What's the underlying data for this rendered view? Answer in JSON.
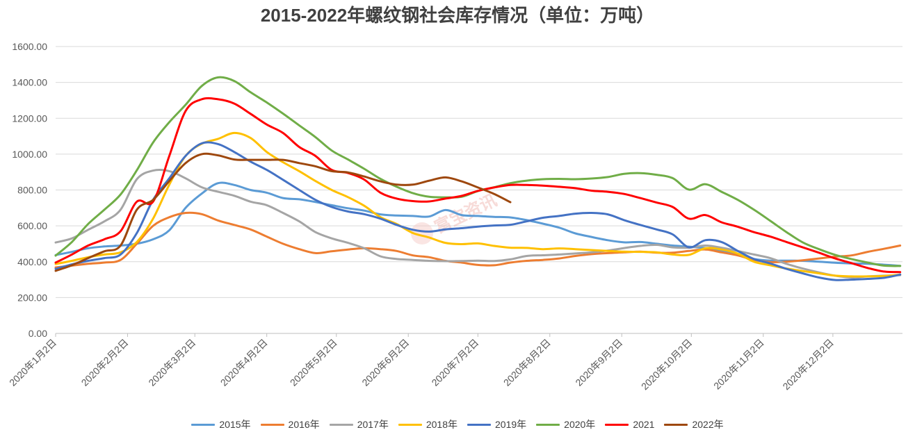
{
  "chart_data": {
    "type": "line",
    "title": "2015-2022年螺纹钢社会库存情况（单位：万吨）",
    "x_scale": "date",
    "xlim": [
      "2020-01-02",
      "2021-01-01"
    ],
    "ylim": [
      0,
      1600
    ],
    "grid": "horizontal",
    "legend": "bottom",
    "y_ticks": [
      "0.00",
      "200.00",
      "400.00",
      "600.00",
      "800.00",
      "1000.00",
      "1200.00",
      "1400.00",
      "1600.00"
    ],
    "x_ticks": [
      {
        "date": "2020-01-02",
        "label": "2020年1月2日"
      },
      {
        "date": "2020-02-02",
        "label": "2020年2月2日"
      },
      {
        "date": "2020-03-02",
        "label": "2020年3月2日"
      },
      {
        "date": "2020-04-02",
        "label": "2020年4月2日"
      },
      {
        "date": "2020-05-02",
        "label": "2020年5月2日"
      },
      {
        "date": "2020-06-02",
        "label": "2020年6月2日"
      },
      {
        "date": "2020-07-02",
        "label": "2020年7月2日"
      },
      {
        "date": "2020-08-02",
        "label": "2020年8月2日"
      },
      {
        "date": "2020-09-02",
        "label": "2020年9月2日"
      },
      {
        "date": "2020-10-02",
        "label": "2020年10月2日"
      },
      {
        "date": "2020-11-02",
        "label": "2020年11月2日"
      },
      {
        "date": "2020-12-02",
        "label": "2020年12月2日"
      }
    ],
    "x": [
      "2020-01-02",
      "2020-01-09",
      "2020-01-16",
      "2020-01-23",
      "2020-01-30",
      "2020-02-06",
      "2020-02-13",
      "2020-02-20",
      "2020-02-27",
      "2020-03-05",
      "2020-03-12",
      "2020-03-19",
      "2020-03-26",
      "2020-04-02",
      "2020-04-09",
      "2020-04-16",
      "2020-04-23",
      "2020-04-30",
      "2020-05-07",
      "2020-05-14",
      "2020-05-21",
      "2020-05-28",
      "2020-06-04",
      "2020-06-11",
      "2020-06-18",
      "2020-06-25",
      "2020-07-02",
      "2020-07-09",
      "2020-07-16",
      "2020-07-23",
      "2020-07-30",
      "2020-08-06",
      "2020-08-13",
      "2020-08-20",
      "2020-08-27",
      "2020-09-03",
      "2020-09-10",
      "2020-09-17",
      "2020-09-24",
      "2020-10-01",
      "2020-10-08",
      "2020-10-15",
      "2020-10-22",
      "2020-10-29",
      "2020-11-05",
      "2020-11-12",
      "2020-11-19",
      "2020-11-26",
      "2020-12-03",
      "2020-12-10",
      "2020-12-17",
      "2020-12-24",
      "2020-12-31"
    ],
    "series": [
      {
        "name": "2015年",
        "color": "#5B9BD5",
        "values": [
          437,
          455,
          475,
          485,
          490,
          500,
          525,
          575,
          700,
          780,
          838,
          828,
          800,
          785,
          755,
          748,
          733,
          715,
          698,
          685,
          664,
          658,
          655,
          652,
          688,
          660,
          655,
          650,
          647,
          632,
          612,
          590,
          558,
          538,
          520,
          508,
          510,
          500,
          490,
          484,
          476,
          462,
          440,
          415,
          406,
          406,
          405,
          400,
          394,
          390,
          388,
          383,
          377
        ]
      },
      {
        "name": "2016年",
        "color": "#ED7D31",
        "values": [
          368,
          378,
          388,
          395,
          410,
          500,
          600,
          648,
          672,
          665,
          630,
          605,
          580,
          540,
          500,
          470,
          448,
          458,
          468,
          475,
          470,
          460,
          435,
          425,
          405,
          395,
          382,
          380,
          395,
          405,
          410,
          418,
          432,
          442,
          448,
          452,
          456,
          450,
          450,
          460,
          468,
          452,
          435,
          410,
          398,
          400,
          408,
          418,
          428,
          435,
          455,
          472,
          490
        ]
      },
      {
        "name": "2017年",
        "color": "#A5A5A5",
        "values": [
          507,
          530,
          578,
          625,
          690,
          860,
          908,
          905,
          865,
          815,
          790,
          768,
          735,
          715,
          672,
          625,
          565,
          530,
          505,
          475,
          430,
          415,
          410,
          405,
          403,
          404,
          406,
          404,
          413,
          432,
          436,
          440,
          446,
          452,
          462,
          476,
          488,
          494,
          480,
          478,
          490,
          478,
          460,
          440,
          420,
          388,
          362,
          340,
          322,
          312,
          318,
          322,
          325
        ]
      },
      {
        "name": "2018年",
        "color": "#FFC000",
        "values": [
          387,
          405,
          425,
          440,
          452,
          510,
          640,
          830,
          990,
          1058,
          1085,
          1118,
          1090,
          1012,
          955,
          905,
          850,
          800,
          760,
          712,
          648,
          610,
          560,
          535,
          505,
          498,
          502,
          488,
          478,
          477,
          470,
          474,
          470,
          465,
          460,
          456,
          455,
          452,
          440,
          438,
          475,
          468,
          445,
          400,
          380,
          362,
          348,
          335,
          322,
          318,
          318,
          320,
          328
        ]
      },
      {
        "name": "2019年",
        "color": "#4472C4",
        "values": [
          360,
          385,
          405,
          420,
          440,
          560,
          745,
          865,
          990,
          1060,
          1056,
          1012,
          958,
          912,
          857,
          800,
          745,
          705,
          680,
          665,
          640,
          605,
          578,
          568,
          580,
          587,
          596,
          602,
          606,
          625,
          645,
          655,
          668,
          672,
          664,
          632,
          605,
          580,
          552,
          480,
          520,
          510,
          460,
          415,
          390,
          360,
          335,
          312,
          298,
          300,
          304,
          310,
          328
        ]
      },
      {
        "name": "2020年",
        "color": "#70AD47",
        "values": [
          434,
          510,
          610,
          690,
          775,
          910,
          1065,
          1178,
          1275,
          1380,
          1428,
          1408,
          1345,
          1288,
          1226,
          1160,
          1095,
          1020,
          970,
          918,
          862,
          818,
          782,
          762,
          759,
          762,
          794,
          815,
          838,
          852,
          860,
          862,
          860,
          864,
          872,
          890,
          894,
          885,
          866,
          802,
          832,
          790,
          745,
          690,
          628,
          565,
          508,
          470,
          438,
          415,
          395,
          378,
          376
        ]
      },
      {
        "name": "2021",
        "color": "#FF0000",
        "values": [
          395,
          440,
          490,
          525,
          570,
          735,
          735,
          990,
          1240,
          1306,
          1306,
          1282,
          1225,
          1165,
          1118,
          1040,
          990,
          912,
          895,
          858,
          785,
          752,
          738,
          736,
          752,
          767,
          795,
          814,
          828,
          828,
          824,
          818,
          810,
          796,
          790,
          778,
          755,
          730,
          705,
          640,
          660,
          620,
          595,
          565,
          540,
          510,
          480,
          450,
          418,
          392,
          365,
          345,
          342
        ]
      },
      {
        "name": "2022年",
        "color": "#9E480E",
        "values": [
          349,
          380,
          420,
          458,
          490,
          690,
          745,
          850,
          950,
          1000,
          993,
          970,
          968,
          968,
          968,
          950,
          932,
          905,
          898,
          875,
          848,
          830,
          830,
          852,
          870,
          848,
          814,
          778,
          732,
          null,
          null,
          null,
          null,
          null,
          null,
          null,
          null,
          null,
          null,
          null,
          null,
          null,
          null,
          null,
          null,
          null,
          null,
          null,
          null,
          null,
          null,
          null,
          null
        ]
      }
    ]
  },
  "watermark": {
    "text": "富宝资讯"
  }
}
